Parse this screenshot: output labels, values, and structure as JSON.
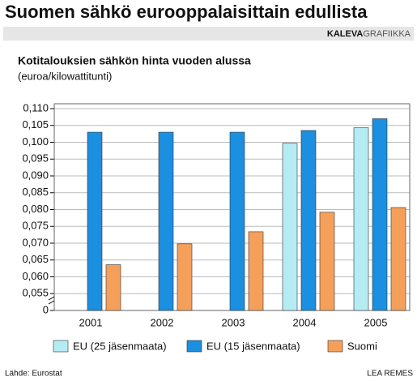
{
  "chart_data": {
    "type": "bar",
    "title": "Suomen sähkö eurooppalaisittain edullista",
    "publisher": {
      "bold": "KALEVA",
      "light": "GRAFIIKKA"
    },
    "subtitle": "Kotitalouksien sähkön hinta vuoden alussa",
    "unit_label": "(euroa/kilowattitunti)",
    "source": "Lähde: Eurostat",
    "author": "LEA REMES",
    "categories": [
      "2001",
      "2002",
      "2003",
      "2004",
      "2005"
    ],
    "series": [
      {
        "name": "EU (25 jäsenmaata)",
        "color": "#b5ecf3",
        "values": [
          null,
          null,
          null,
          0.0997,
          0.1043
        ]
      },
      {
        "name": "EU (15 jäsenmaata)",
        "color": "#1b8fe0",
        "values": [
          0.103,
          0.103,
          0.103,
          0.1035,
          0.107
        ]
      },
      {
        "name": "Suomi",
        "color": "#f5a05a",
        "values": [
          0.0636,
          0.0698,
          0.0734,
          0.0792,
          0.0806
        ]
      }
    ],
    "ylim": [
      0,
      0.11
    ],
    "axis_break": [
      0,
      0.05
    ],
    "yticks": [
      0,
      {
        "value": 0.055,
        "label": "0,055"
      },
      {
        "value": 0.06,
        "label": "0,060"
      },
      {
        "value": 0.065,
        "label": "0,065"
      },
      {
        "value": 0.07,
        "label": "0,070"
      },
      {
        "value": 0.075,
        "label": "0,075"
      },
      {
        "value": 0.08,
        "label": "0,080"
      },
      {
        "value": 0.085,
        "label": "0,085"
      },
      {
        "value": 0.09,
        "label": "0,090"
      },
      {
        "value": 0.095,
        "label": "0,095"
      },
      {
        "value": 0.1,
        "label": "0,100"
      },
      {
        "value": 0.105,
        "label": "0,105"
      },
      {
        "value": 0.11,
        "label": "0,110"
      }
    ],
    "grid": true
  }
}
